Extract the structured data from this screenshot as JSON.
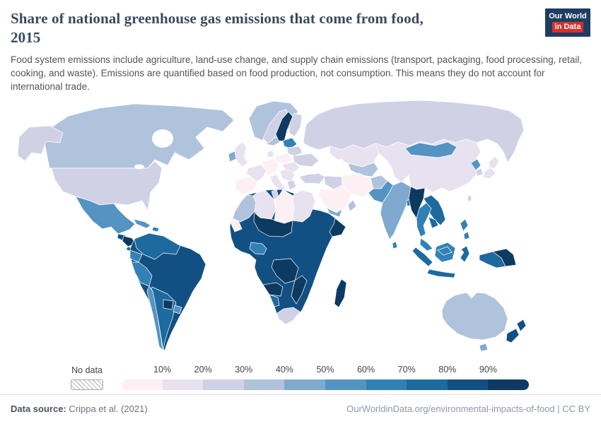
{
  "header": {
    "title_line1": "Share of national greenhouse gas emissions that come from food,",
    "title_line2": "2015",
    "subtitle": "Food system emissions include agriculture, land-use change, and supply chain emissions (transport, packaging, food processing, retail, cooking, and waste). Emissions are quantified based on food production, not consumption. This means they do not account for international trade.",
    "logo": {
      "line1": "Our World",
      "line2": "in Data",
      "bg": "#1d3d63",
      "accent": "#d0342c"
    }
  },
  "legend": {
    "no_data_label": "No data",
    "tick_labels": [
      "10%",
      "20%",
      "30%",
      "40%",
      "50%",
      "60%",
      "70%",
      "80%",
      "90%"
    ]
  },
  "footer": {
    "source_label": "Data source:",
    "source_value": "Crippa et al. (2021)",
    "right_text": "OurWorldinData.org/environmental-impacts-of-food | CC BY"
  },
  "chart_data": {
    "type": "choropleth",
    "title": "Share of national greenhouse gas emissions that come from food, 2015",
    "year": "2015",
    "unit": "%",
    "legend_position": "bottom",
    "scale_domain": [
      0,
      10,
      20,
      30,
      40,
      50,
      60,
      70,
      80,
      90,
      100
    ],
    "scale_colors": [
      "#fcf0f5",
      "#e8e1ef",
      "#d1d1e6",
      "#b0c3dc",
      "#7fa9cf",
      "#5493c2",
      "#3181b5",
      "#1d6a9e",
      "#125083",
      "#0c3a60"
    ],
    "no_data_color": "#ffffff",
    "regions": {
      "usa": {
        "label": "United States",
        "range": "20–30%",
        "bucket": 3
      },
      "canada": {
        "label": "Canada",
        "range": "30–40%",
        "bucket": 4
      },
      "greenland": {
        "label": "Greenland",
        "range": "30–40%",
        "bucket": 4
      },
      "iceland": {
        "label": "Iceland",
        "range": "30–40%",
        "bucket": 4
      },
      "mexico": {
        "label": "Mexico",
        "range": "50–60%",
        "bucket": 6
      },
      "guatemala": {
        "label": "Guatemala",
        "range": "80–90%",
        "bucket": 9
      },
      "honduras_nicaragua": {
        "label": "Honduras & Nicaragua",
        "range": "90–100%",
        "bucket": 10
      },
      "costa_rica_panama": {
        "label": "Costa Rica & Panama",
        "range": "70–80%",
        "bucket": 8
      },
      "cuba": {
        "label": "Cuba",
        "range": "50–60%",
        "bucket": 6
      },
      "hispaniola": {
        "label": "Hispaniola",
        "range": "60–70%",
        "bucket": 7
      },
      "colombia_venezuela": {
        "label": "Colombia & Venezuela",
        "range": "70–80%",
        "bucket": 8
      },
      "ecuador": {
        "label": "Ecuador",
        "range": "60–70%",
        "bucket": 7
      },
      "peru": {
        "label": "Peru",
        "range": "60–70%",
        "bucket": 7
      },
      "brazil": {
        "label": "Brazil & interior South America",
        "range": "80–90%",
        "bucket": 9
      },
      "paraguay": {
        "label": "Paraguay",
        "range": "90–100%",
        "bucket": 10
      },
      "argentina": {
        "label": "Argentina",
        "range": "70–80%",
        "bucket": 8
      },
      "chile": {
        "label": "Chile",
        "range": "50–60%",
        "bucket": 6
      },
      "uruguay": {
        "label": "Uruguay",
        "range": "50–60%",
        "bucket": 6
      },
      "iberia": {
        "label": "Spain & Portugal",
        "range": "0–10%",
        "bucket": 1
      },
      "france": {
        "label": "France",
        "range": "10–20%",
        "bucket": 2
      },
      "germany_central": {
        "label": "Germany & Central Europe",
        "range": "0–10%",
        "bucket": 1
      },
      "italy": {
        "label": "Italy",
        "range": "10–20%",
        "bucket": 2
      },
      "balkans": {
        "label": "Balkans",
        "range": "10–20%",
        "bucket": 2
      },
      "romania": {
        "label": "Romania & Hungary",
        "range": "10–20%",
        "bucket": 2
      },
      "poland": {
        "label": "Poland",
        "range": "0–10%",
        "bucket": 1
      },
      "ukraine": {
        "label": "Ukraine",
        "range": "20–30%",
        "bucket": 3
      },
      "belarus": {
        "label": "Belarus",
        "range": "20–30%",
        "bucket": 3
      },
      "baltics": {
        "label": "Baltic states",
        "range": "60–70%",
        "bucket": 7
      },
      "uk": {
        "label": "United Kingdom",
        "range": "10–20%",
        "bucket": 2
      },
      "ireland": {
        "label": "Ireland",
        "range": "40–50%",
        "bucket": 5
      },
      "norway": {
        "label": "Norway",
        "range": "20–30%",
        "bucket": 3
      },
      "sweden": {
        "label": "Sweden",
        "range": "90–100%",
        "bucket": 10
      },
      "finland": {
        "label": "Finland",
        "range": "20–30%",
        "bucket": 3
      },
      "denmark": {
        "label": "Denmark",
        "range": "10–20%",
        "bucket": 2
      },
      "greece": {
        "label": "Greece",
        "range": "20–30%",
        "bucket": 3
      },
      "turkey": {
        "label": "Turkey",
        "range": "20–30%",
        "bucket": 3
      },
      "russia": {
        "label": "Russia",
        "range": "20–30%",
        "bucket": 3
      },
      "kazakhstan": {
        "label": "Kazakhstan",
        "range": "10–20%",
        "bucket": 2
      },
      "central_asia": {
        "label": "Central Asia",
        "range": "30–40%",
        "bucket": 4
      },
      "iran": {
        "label": "Iran",
        "range": "0–10%",
        "bucket": 1
      },
      "iraq_syria": {
        "label": "Iraq & Syria",
        "range": "20–30%",
        "bucket": 3
      },
      "saudi_arabia": {
        "label": "Saudi Arabia",
        "range": "0–10%",
        "bucket": 1
      },
      "yemen": {
        "label": "Yemen",
        "range": "40–50%",
        "bucket": 5
      },
      "oman": {
        "label": "Oman",
        "range": "30–40%",
        "bucket": 4
      },
      "afghanistan": {
        "label": "Afghanistan",
        "range": "30–40%",
        "bucket": 4
      },
      "pakistan": {
        "label": "Pakistan",
        "range": "50–60%",
        "bucket": 6
      },
      "india": {
        "label": "India",
        "range": "40–50%",
        "bucket": 5
      },
      "sri_lanka": {
        "label": "Sri Lanka",
        "range": "60–70%",
        "bucket": 7
      },
      "bangladesh": {
        "label": "Bangladesh",
        "range": "60–70%",
        "bucket": 7
      },
      "china": {
        "label": "China",
        "range": "10–20%",
        "bucket": 2
      },
      "mongolia": {
        "label": "Mongolia",
        "range": "50–60%",
        "bucket": 6
      },
      "north_korea": {
        "label": "North Korea",
        "range": "50–60%",
        "bucket": 6
      },
      "south_korea": {
        "label": "South Korea",
        "range": "20–30%",
        "bucket": 3
      },
      "japan": {
        "label": "Japan",
        "range": "10–20%",
        "bucket": 2
      },
      "taiwan": {
        "label": "Taiwan",
        "range": "20–30%",
        "bucket": 3
      },
      "myanmar": {
        "label": "Myanmar",
        "range": "90–100%",
        "bucket": 10
      },
      "thailand": {
        "label": "Thailand",
        "range": "60–70%",
        "bucket": 7
      },
      "laos_vietnam": {
        "label": "Laos & Vietnam",
        "range": "70–80%",
        "bucket": 8
      },
      "cambodia": {
        "label": "Cambodia",
        "range": "70–80%",
        "bucket": 8
      },
      "malaysia": {
        "label": "Malaysia",
        "range": "60–70%",
        "bucket": 7
      },
      "borneo": {
        "label": "Borneo (Kalimantan)",
        "range": "60–70%",
        "bucket": 7
      },
      "indonesia": {
        "label": "Indonesia",
        "range": "70–80%",
        "bucket": 8
      },
      "papua_new_guinea": {
        "label": "Papua New Guinea",
        "range": "90–100%",
        "bucket": 10
      },
      "philippines": {
        "label": "Philippines",
        "range": "60–70%",
        "bucket": 7
      },
      "australia": {
        "label": "Australia",
        "range": "30–40%",
        "bucket": 4
      },
      "tasmania": {
        "label": "Tasmania",
        "range": "40–50%",
        "bucket": 5
      },
      "new_zealand": {
        "label": "New Zealand",
        "range": "80–90%",
        "bucket": 9
      },
      "morocco": {
        "label": "Morocco",
        "range": "30–40%",
        "bucket": 4
      },
      "western_sahara": {
        "label": "Western Sahara",
        "range": "0–10%",
        "bucket": 1
      },
      "algeria": {
        "label": "Algeria",
        "range": "10–20%",
        "bucket": 2
      },
      "tunisia": {
        "label": "Tunisia",
        "range": "20–30%",
        "bucket": 3
      },
      "libya": {
        "label": "Libya",
        "range": "0–10%",
        "bucket": 1
      },
      "egypt": {
        "label": "Egypt",
        "range": "10–20%",
        "bucket": 2
      },
      "sahel": {
        "label": "Mali, Niger & Chad",
        "range": "90–100%",
        "bucket": 10
      },
      "nigeria": {
        "label": "Nigeria",
        "range": "60–70%",
        "bucket": 7
      },
      "africa_base": {
        "label": "Sub-Saharan Africa",
        "range": "80–90%",
        "bucket": 9
      },
      "dr_congo": {
        "label": "Democratic Republic of Congo",
        "range": "90–100%",
        "bucket": 10
      },
      "somalia": {
        "label": "Somalia",
        "range": "90–100%",
        "bucket": 10
      },
      "east_africa": {
        "label": "Tanzania & Mozambique",
        "range": "90–100%",
        "bucket": 10
      },
      "angola": {
        "label": "Angola",
        "range": "90–100%",
        "bucket": 10
      },
      "namibia": {
        "label": "Namibia",
        "range": "70–80%",
        "bucket": 8
      },
      "south_africa": {
        "label": "South Africa",
        "range": "20–30%",
        "bucket": 3
      },
      "madagascar": {
        "label": "Madagascar",
        "range": "90–100%",
        "bucket": 10
      }
    }
  }
}
